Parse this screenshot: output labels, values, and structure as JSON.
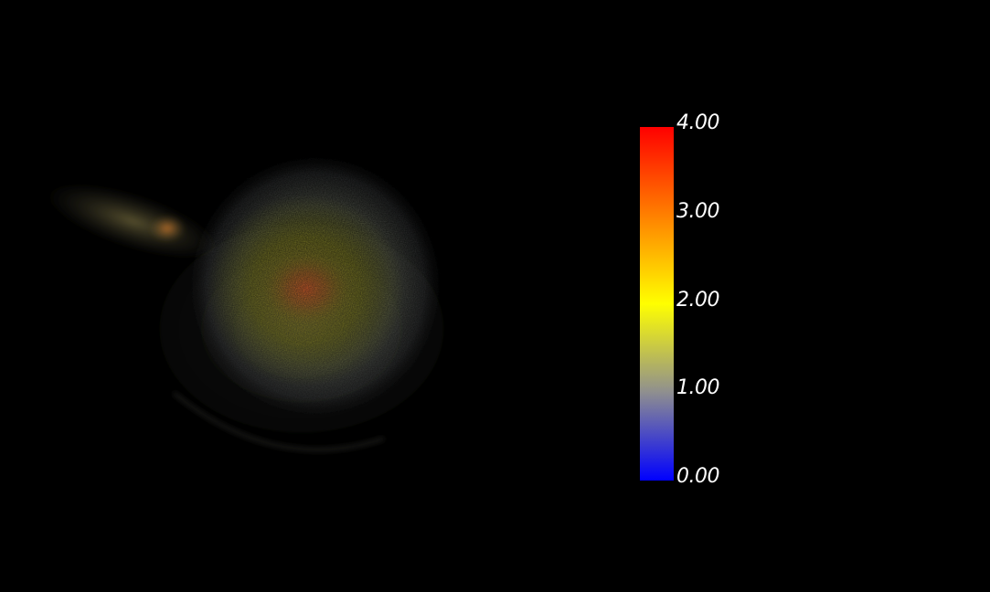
{
  "colorbar": {
    "min": 0,
    "max": 4,
    "ticks": [
      {
        "value": 4,
        "label": "4.00"
      },
      {
        "value": 3,
        "label": "3.00"
      },
      {
        "value": 2,
        "label": "2.00"
      },
      {
        "value": 1,
        "label": "1.00"
      },
      {
        "value": 0,
        "label": "0.00"
      }
    ],
    "colormap": [
      {
        "value": 0.0,
        "color": "#0000ff"
      },
      {
        "value": 1.0,
        "color": "#8f8f8f"
      },
      {
        "value": 2.0,
        "color": "#ffff00"
      },
      {
        "value": 3.0,
        "color": "#ff8000"
      },
      {
        "value": 4.0,
        "color": "#ff0000"
      }
    ]
  },
  "render": {
    "background_color": "#000000",
    "halo_color": "#6e7363",
    "body_color": "#7a7a1e",
    "core_color": "#d45a2a"
  }
}
